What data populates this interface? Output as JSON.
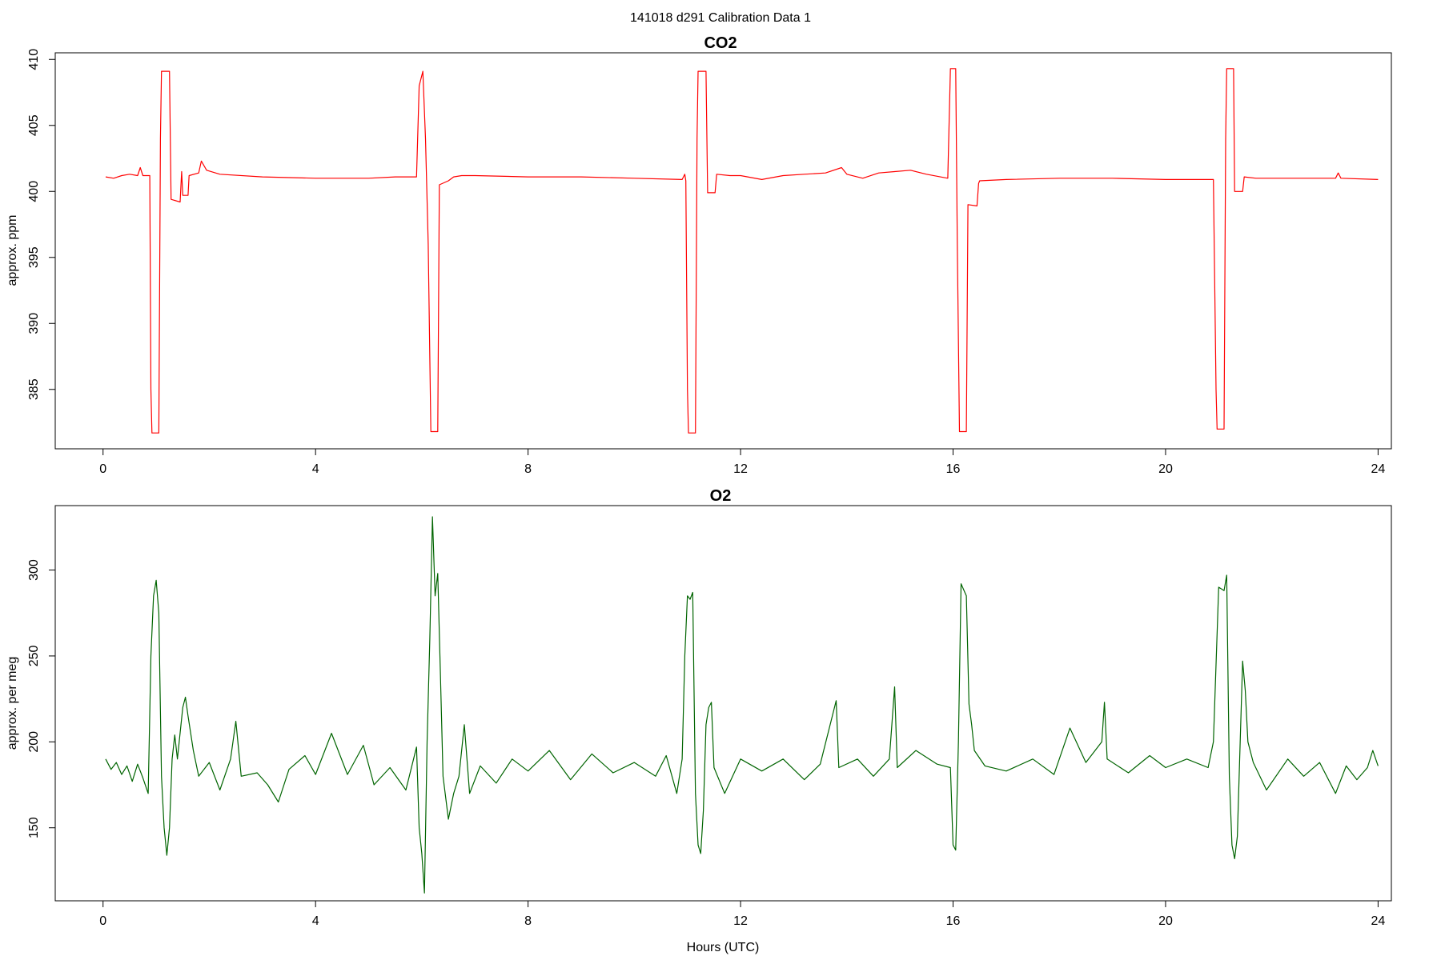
{
  "figure": {
    "title": "141018   d291   Calibration Data 1"
  },
  "colors": {
    "co2_line": "#ff0000",
    "o2_line": "#006400",
    "axis": "#000000"
  },
  "chart_data": [
    {
      "type": "line",
      "title": "CO2",
      "xlabel": "",
      "ylabel": "approx. ppm",
      "xlim": [
        -0.9,
        24.25
      ],
      "ylim": [
        380.5,
        410.5
      ],
      "x_ticks": [
        0,
        4,
        8,
        12,
        16,
        20,
        24
      ],
      "y_ticks": [
        385,
        390,
        395,
        400,
        405,
        410
      ],
      "grid": false,
      "series": [
        {
          "color": "#ff0000",
          "points": [
            [
              0.05,
              401.1
            ],
            [
              0.2,
              401.0
            ],
            [
              0.35,
              401.2
            ],
            [
              0.5,
              401.3
            ],
            [
              0.65,
              401.2
            ],
            [
              0.7,
              401.8
            ],
            [
              0.75,
              401.2
            ],
            [
              0.88,
              401.2
            ],
            [
              0.9,
              385
            ],
            [
              0.92,
              381.7
            ],
            [
              1.05,
              381.7
            ],
            [
              1.08,
              404
            ],
            [
              1.1,
              409.1
            ],
            [
              1.25,
              409.1
            ],
            [
              1.28,
              399.4
            ],
            [
              1.45,
              399.2
            ],
            [
              1.48,
              401.5
            ],
            [
              1.5,
              399.7
            ],
            [
              1.6,
              399.7
            ],
            [
              1.62,
              401.2
            ],
            [
              1.8,
              401.4
            ],
            [
              1.85,
              402.3
            ],
            [
              1.95,
              401.6
            ],
            [
              2.2,
              401.3
            ],
            [
              3,
              401.1
            ],
            [
              4,
              401.0
            ],
            [
              5,
              401.0
            ],
            [
              5.5,
              401.1
            ],
            [
              5.9,
              401.1
            ],
            [
              5.95,
              408
            ],
            [
              6.02,
              409.1
            ],
            [
              6.07,
              404
            ],
            [
              6.12,
              396
            ],
            [
              6.17,
              381.8
            ],
            [
              6.3,
              381.8
            ],
            [
              6.33,
              400.5
            ],
            [
              6.5,
              400.8
            ],
            [
              6.6,
              401.1
            ],
            [
              6.75,
              401.2
            ],
            [
              7,
              401.2
            ],
            [
              8,
              401.1
            ],
            [
              9,
              401.1
            ],
            [
              10,
              401.0
            ],
            [
              10.9,
              400.9
            ],
            [
              10.95,
              401.3
            ],
            [
              10.97,
              400.8
            ],
            [
              11.0,
              385
            ],
            [
              11.02,
              381.7
            ],
            [
              11.15,
              381.7
            ],
            [
              11.18,
              404
            ],
            [
              11.2,
              409.1
            ],
            [
              11.35,
              409.1
            ],
            [
              11.38,
              399.9
            ],
            [
              11.52,
              399.9
            ],
            [
              11.55,
              401.3
            ],
            [
              11.8,
              401.2
            ],
            [
              12,
              401.2
            ],
            [
              12.4,
              400.9
            ],
            [
              12.8,
              401.2
            ],
            [
              13.2,
              401.3
            ],
            [
              13.6,
              401.4
            ],
            [
              13.9,
              401.8
            ],
            [
              14.0,
              401.3
            ],
            [
              14.3,
              401.0
            ],
            [
              14.6,
              401.4
            ],
            [
              14.9,
              401.5
            ],
            [
              15.2,
              401.6
            ],
            [
              15.5,
              401.3
            ],
            [
              15.9,
              401.0
            ],
            [
              15.95,
              409.3
            ],
            [
              16.05,
              409.3
            ],
            [
              16.08,
              396
            ],
            [
              16.12,
              381.8
            ],
            [
              16.25,
              381.8
            ],
            [
              16.28,
              399
            ],
            [
              16.45,
              398.9
            ],
            [
              16.48,
              400.6
            ],
            [
              16.5,
              400.8
            ],
            [
              17,
              400.9
            ],
            [
              18,
              401.0
            ],
            [
              19,
              401.0
            ],
            [
              20,
              400.9
            ],
            [
              20.9,
              400.9
            ],
            [
              20.95,
              385
            ],
            [
              20.97,
              382
            ],
            [
              21.1,
              382
            ],
            [
              21.13,
              404
            ],
            [
              21.15,
              409.3
            ],
            [
              21.28,
              409.3
            ],
            [
              21.3,
              400
            ],
            [
              21.45,
              400
            ],
            [
              21.48,
              401.1
            ],
            [
              21.7,
              401.0
            ],
            [
              22.5,
              401.0
            ],
            [
              23.2,
              401.0
            ],
            [
              23.25,
              401.4
            ],
            [
              23.3,
              401.0
            ],
            [
              24,
              400.9
            ]
          ]
        }
      ]
    },
    {
      "type": "line",
      "title": "O2",
      "xlabel": "Hours (UTC)",
      "ylabel": "approx. per meg",
      "xlim": [
        -0.9,
        24.25
      ],
      "ylim": [
        107.5,
        337.5
      ],
      "x_ticks": [
        0,
        4,
        8,
        12,
        16,
        20,
        24
      ],
      "y_ticks": [
        150,
        200,
        250,
        300
      ],
      "grid": false,
      "series": [
        {
          "color": "#006400",
          "points": [
            [
              0.05,
              190
            ],
            [
              0.15,
              184
            ],
            [
              0.25,
              188
            ],
            [
              0.35,
              181
            ],
            [
              0.45,
              186
            ],
            [
              0.55,
              177
            ],
            [
              0.65,
              187
            ],
            [
              0.75,
              179
            ],
            [
              0.85,
              170
            ],
            [
              0.9,
              250
            ],
            [
              0.95,
              285
            ],
            [
              1.0,
              294
            ],
            [
              1.05,
              275
            ],
            [
              1.1,
              180
            ],
            [
              1.15,
              150
            ],
            [
              1.2,
              134
            ],
            [
              1.25,
              150
            ],
            [
              1.3,
              190
            ],
            [
              1.35,
              204
            ],
            [
              1.4,
              190
            ],
            [
              1.5,
              220
            ],
            [
              1.55,
              226
            ],
            [
              1.6,
              215
            ],
            [
              1.7,
              195
            ],
            [
              1.8,
              180
            ],
            [
              2.0,
              188
            ],
            [
              2.2,
              172
            ],
            [
              2.4,
              190
            ],
            [
              2.5,
              212
            ],
            [
              2.6,
              180
            ],
            [
              2.9,
              182
            ],
            [
              3.1,
              175
            ],
            [
              3.3,
              165
            ],
            [
              3.5,
              184
            ],
            [
              3.8,
              192
            ],
            [
              4.0,
              181
            ],
            [
              4.3,
              205
            ],
            [
              4.6,
              181
            ],
            [
              4.9,
              198
            ],
            [
              5.1,
              175
            ],
            [
              5.4,
              185
            ],
            [
              5.7,
              172
            ],
            [
              5.9,
              197
            ],
            [
              5.95,
              150
            ],
            [
              6.0,
              135
            ],
            [
              6.05,
              112
            ],
            [
              6.1,
              200
            ],
            [
              6.15,
              260
            ],
            [
              6.2,
              331
            ],
            [
              6.25,
              285
            ],
            [
              6.3,
              298
            ],
            [
              6.35,
              240
            ],
            [
              6.4,
              180
            ],
            [
              6.5,
              155
            ],
            [
              6.6,
              170
            ],
            [
              6.7,
              180
            ],
            [
              6.8,
              210
            ],
            [
              6.9,
              170
            ],
            [
              7.1,
              186
            ],
            [
              7.4,
              176
            ],
            [
              7.7,
              190
            ],
            [
              8.0,
              183
            ],
            [
              8.4,
              195
            ],
            [
              8.8,
              178
            ],
            [
              9.2,
              193
            ],
            [
              9.6,
              182
            ],
            [
              10.0,
              188
            ],
            [
              10.4,
              180
            ],
            [
              10.6,
              192
            ],
            [
              10.8,
              170
            ],
            [
              10.9,
              190
            ],
            [
              10.95,
              250
            ],
            [
              11.0,
              285
            ],
            [
              11.05,
              283
            ],
            [
              11.1,
              287
            ],
            [
              11.15,
              170
            ],
            [
              11.2,
              140
            ],
            [
              11.25,
              135
            ],
            [
              11.3,
              160
            ],
            [
              11.35,
              210
            ],
            [
              11.4,
              220
            ],
            [
              11.45,
              223
            ],
            [
              11.5,
              185
            ],
            [
              11.7,
              170
            ],
            [
              12.0,
              190
            ],
            [
              12.4,
              183
            ],
            [
              12.8,
              190
            ],
            [
              13.2,
              178
            ],
            [
              13.5,
              187
            ],
            [
              13.8,
              224
            ],
            [
              13.85,
              185
            ],
            [
              14.2,
              190
            ],
            [
              14.5,
              180
            ],
            [
              14.8,
              190
            ],
            [
              14.9,
              232
            ],
            [
              14.95,
              185
            ],
            [
              15.3,
              195
            ],
            [
              15.7,
              187
            ],
            [
              15.95,
              185
            ],
            [
              16.0,
              140
            ],
            [
              16.05,
              137
            ],
            [
              16.1,
              200
            ],
            [
              16.15,
              292
            ],
            [
              16.25,
              285
            ],
            [
              16.3,
              222
            ],
            [
              16.35,
              210
            ],
            [
              16.4,
              195
            ],
            [
              16.6,
              186
            ],
            [
              17.0,
              183
            ],
            [
              17.5,
              190
            ],
            [
              17.9,
              181
            ],
            [
              18.2,
              208
            ],
            [
              18.5,
              188
            ],
            [
              18.8,
              200
            ],
            [
              18.85,
              223
            ],
            [
              18.9,
              190
            ],
            [
              19.3,
              182
            ],
            [
              19.7,
              192
            ],
            [
              20.0,
              185
            ],
            [
              20.4,
              190
            ],
            [
              20.8,
              185
            ],
            [
              20.9,
              200
            ],
            [
              21.0,
              290
            ],
            [
              21.1,
              288
            ],
            [
              21.15,
              297
            ],
            [
              21.2,
              180
            ],
            [
              21.25,
              140
            ],
            [
              21.3,
              132
            ],
            [
              21.35,
              145
            ],
            [
              21.45,
              247
            ],
            [
              21.5,
              230
            ],
            [
              21.55,
              200
            ],
            [
              21.65,
              188
            ],
            [
              21.9,
              172
            ],
            [
              22.3,
              190
            ],
            [
              22.6,
              180
            ],
            [
              22.9,
              188
            ],
            [
              23.2,
              170
            ],
            [
              23.4,
              186
            ],
            [
              23.6,
              178
            ],
            [
              23.8,
              185
            ],
            [
              23.9,
              195
            ],
            [
              24.0,
              186
            ]
          ]
        }
      ]
    }
  ]
}
